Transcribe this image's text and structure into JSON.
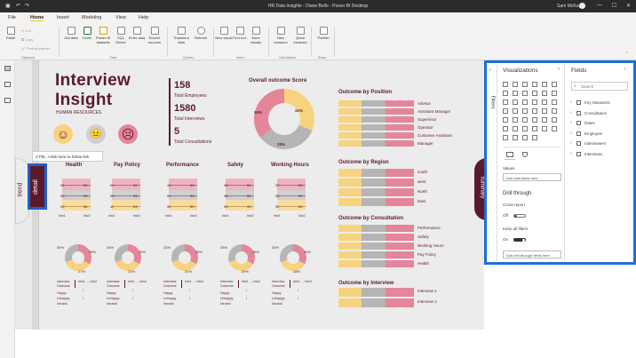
{
  "window": {
    "title": "HR Data Insights - Diane Bello - Power BI Desktop",
    "user": "Sam McKay"
  },
  "ribbon_tabs": [
    "File",
    "Home",
    "Insert",
    "Modeling",
    "View",
    "Help"
  ],
  "active_tab": "Home",
  "ribbon": {
    "clipboard": {
      "paste": "Paste",
      "cut": "Cut",
      "copy": "Copy",
      "format_painter": "Format painter",
      "group": "Clipboard"
    },
    "data": {
      "get_data": "Get data",
      "excel": "Excel",
      "powerbi": "Power BI datasets",
      "sql": "SQL Server",
      "enter": "Enter data",
      "recent": "Recent sources",
      "group": "Data"
    },
    "queries": {
      "transform": "Transform data",
      "refresh": "Refresh",
      "group": "Queries"
    },
    "insert": {
      "new_visual": "New visual",
      "text_box": "Text box",
      "more_visuals": "More visuals",
      "group": "Insert"
    },
    "calculations": {
      "new_measure": "New measure",
      "quick_measure": "Quick measure",
      "group": "Calculations"
    },
    "share": {
      "publish": "Publish",
      "group": "Share"
    }
  },
  "report": {
    "title_line1": "Interview",
    "title_line2": "Insight",
    "subtitle": "HUMAN RESOURCES",
    "kpis": [
      {
        "value": "158",
        "label": "Total Employees"
      },
      {
        "value": "1580",
        "label": "Total Interviews"
      },
      {
        "value": "5",
        "label": "Total Consultations"
      }
    ],
    "donut_title": "Overall outcome Score",
    "donut_labels": [
      "36%",
      "31%",
      "33%"
    ],
    "tooltip": "CTRL +click here to follow link",
    "trend_label": "trend",
    "detail_label": "detail",
    "summary_label": "summary",
    "categories": [
      "Health",
      "Pay Policy",
      "Performance",
      "Safety",
      "Working Hours"
    ],
    "mini_values": [
      [
        "55",
        "52",
        "50",
        "53",
        "59",
        "54"
      ],
      [
        "51",
        "52",
        "50",
        "53",
        "42",
        "53"
      ],
      [
        "49",
        "50",
        "51",
        "53",
        "50",
        "50"
      ],
      [
        "53",
        "54",
        "55",
        "56",
        "55",
        "49"
      ],
      [
        "57",
        "55",
        "53",
        "50",
        "52",
        "50"
      ]
    ],
    "mini_axis": [
      "Intv1",
      "Intv2"
    ],
    "small_donuts": [
      [
        "34%",
        "39%",
        "27%"
      ],
      [
        "34%",
        "43%",
        "23%"
      ],
      [
        "33%",
        "36%",
        "31%"
      ],
      [
        "33%",
        "38%",
        "29%"
      ],
      [
        "33%",
        "39%",
        "28%"
      ]
    ],
    "interview_outcome_label": "Interview Outcome",
    "intv_label": "Intv1 → Intv2",
    "outcome_items": [
      "Happy",
      "Unhappy",
      "Neutral"
    ],
    "position": {
      "title": "Outcome by Position",
      "items": [
        "Advisor",
        "Assistant Manager",
        "Supervisor",
        "Operator",
        "Customer Assistant",
        "Manager"
      ]
    },
    "region": {
      "title": "Outcome by Region",
      "items": [
        "south",
        "west",
        "North",
        "East"
      ]
    },
    "consultation": {
      "title": "Outcome by Consultation",
      "items": [
        "Performance",
        "Safety",
        "Working Hours",
        "Pay Policy",
        "Health"
      ]
    },
    "interview": {
      "title": "Outcome by Interview",
      "items": [
        "Interview 1",
        "Interview 2"
      ]
    }
  },
  "viz_pane": {
    "title": "Visualizations",
    "filters_tab": "Filters",
    "values_label": "Values",
    "values_placeholder": "Add data fields here",
    "drill_title": "Drill through",
    "cross_report": "Cross-report",
    "cross_report_state": "Off",
    "keep_filters": "Keep all filters",
    "keep_filters_state": "On",
    "drill_placeholder": "Add drill-through fields here"
  },
  "fields_pane": {
    "title": "Fields",
    "search_placeholder": "Search",
    "tables": [
      "Key Measures",
      "Consultation",
      "Dates",
      "Employee",
      "Interviewers",
      "Interviews"
    ]
  },
  "colors": {
    "accent": "#5b1a2b",
    "pink": "#e3869a",
    "yellow": "#f7d27f",
    "grey": "#b5b5b5",
    "blue": "#1f6fd6"
  }
}
